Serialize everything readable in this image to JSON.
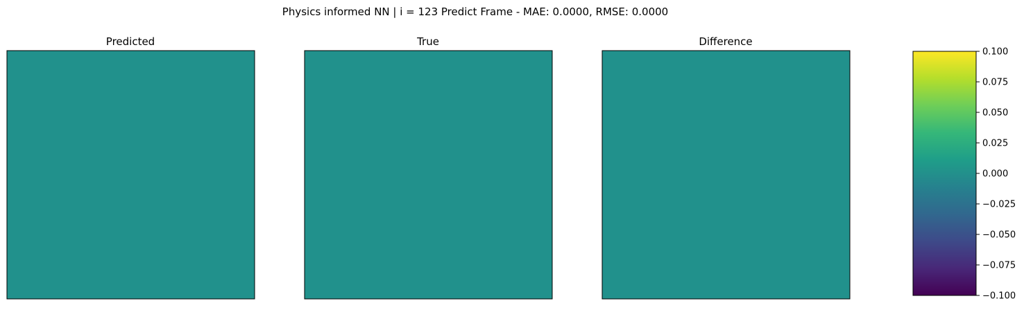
{
  "figure": {
    "suptitle": "Physics informed NN | i = 123 Predict Frame - MAE: 0.0000, RMSE: 0.0000"
  },
  "chart_data": [
    {
      "type": "heatmap",
      "title": "Predicted",
      "uniform_value": 0.0,
      "fill_color": "#21918c",
      "xticks": [],
      "yticks": []
    },
    {
      "type": "heatmap",
      "title": "True",
      "uniform_value": 0.0,
      "fill_color": "#21918c",
      "xticks": [],
      "yticks": []
    },
    {
      "type": "heatmap",
      "title": "Difference",
      "uniform_value": 0.0,
      "fill_color": "#21918c",
      "xticks": [],
      "yticks": []
    }
  ],
  "colorbar": {
    "colormap": "viridis",
    "range": [
      -0.1,
      0.1
    ],
    "ticks": [
      0.1,
      0.075,
      0.05,
      0.025,
      0.0,
      -0.025,
      -0.05,
      -0.075,
      -0.1
    ],
    "tick_labels": [
      "0.100",
      "0.075",
      "0.050",
      "0.025",
      "0.000",
      "−0.025",
      "−0.050",
      "−0.075",
      "−0.100"
    ],
    "stops": [
      "#440154",
      "#482878",
      "#3e4a89",
      "#31688e",
      "#26828e",
      "#1f9e89",
      "#35b779",
      "#6ece58",
      "#b5de2b",
      "#fde725"
    ]
  }
}
